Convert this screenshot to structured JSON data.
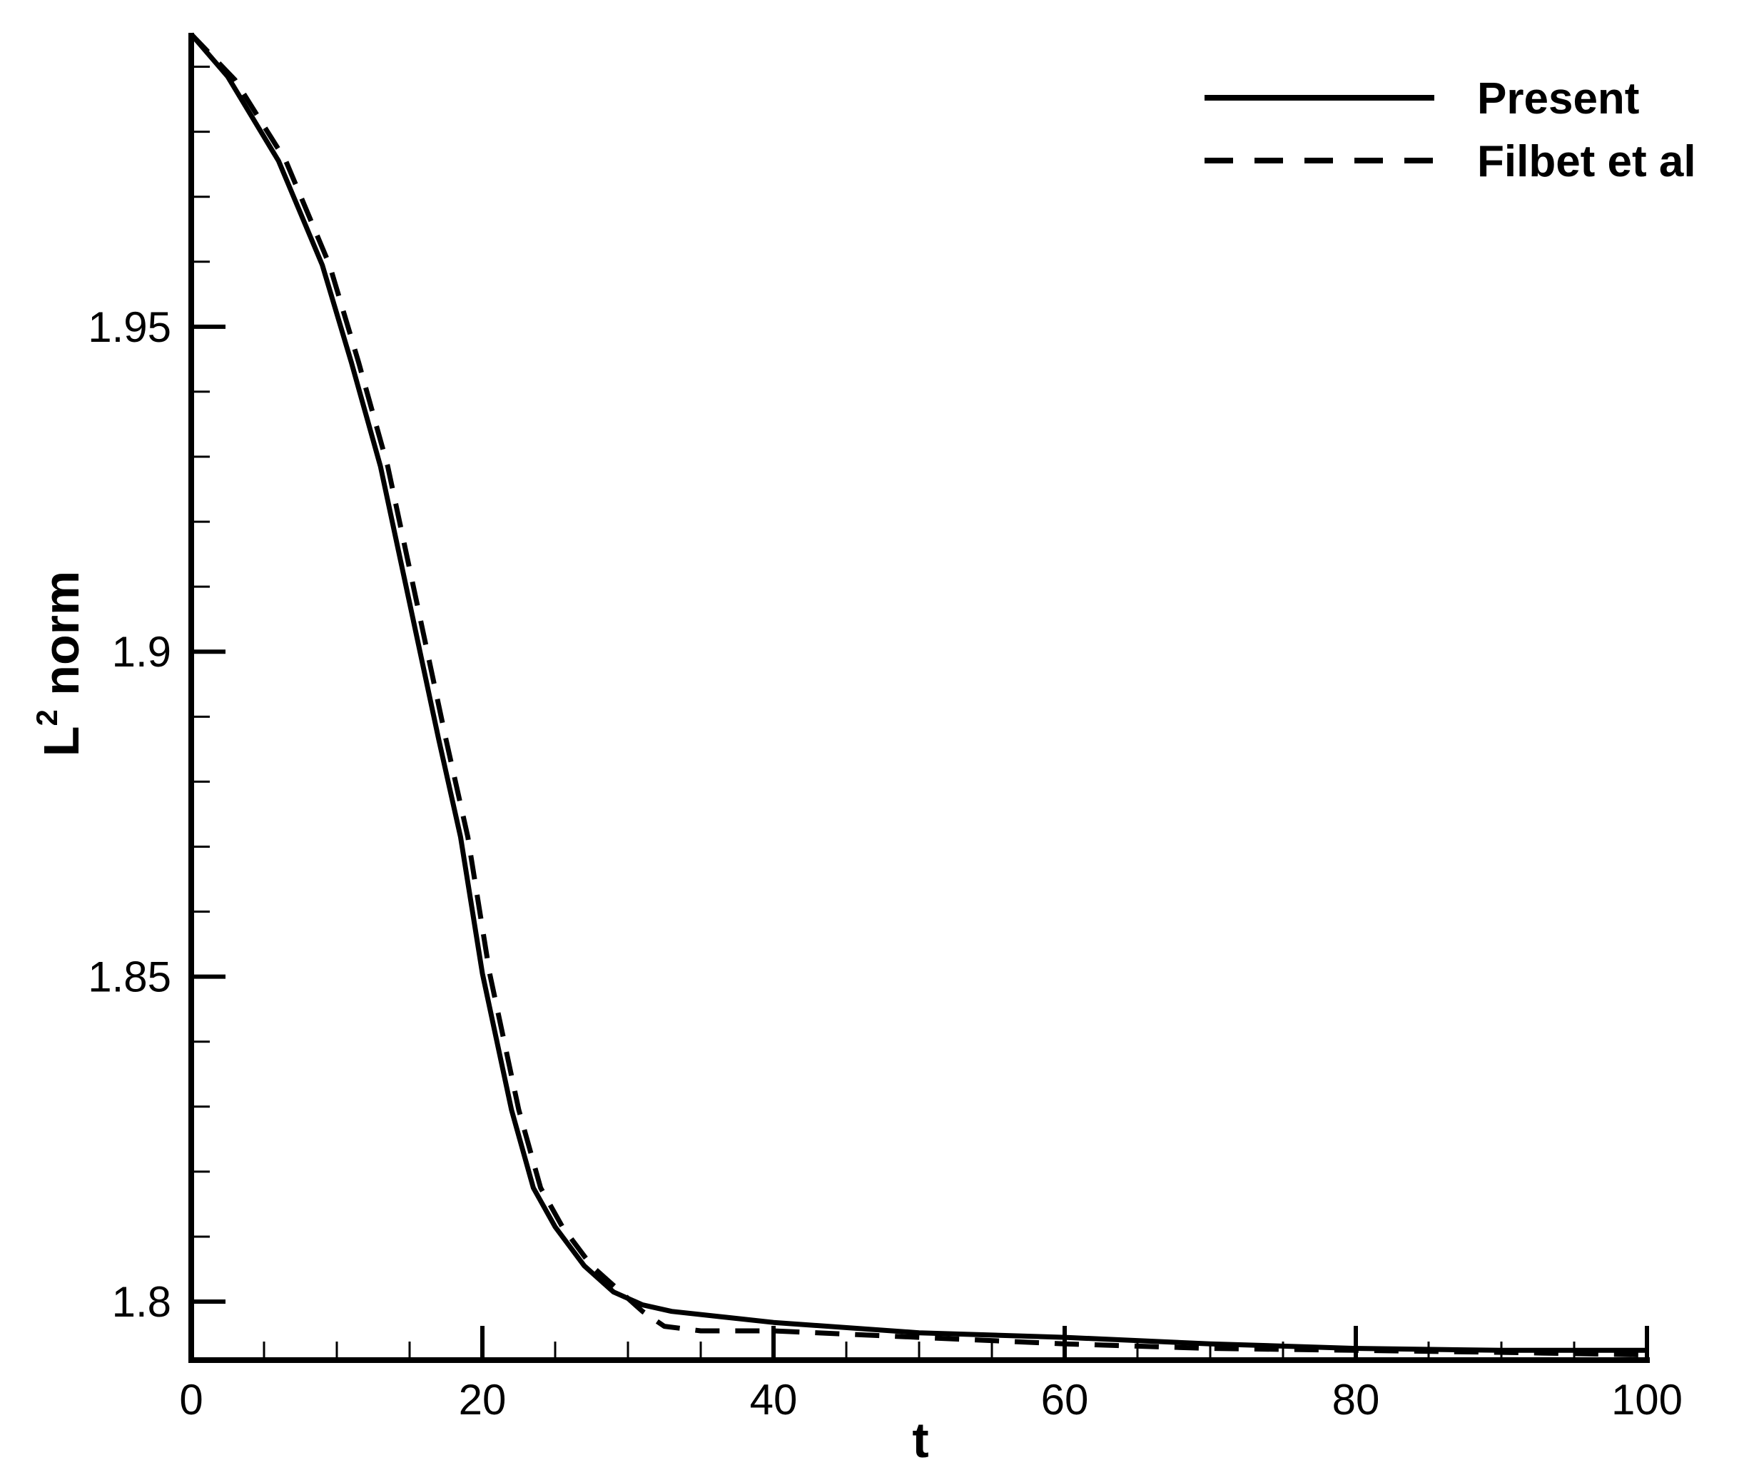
{
  "chart_data": {
    "type": "line",
    "title": "",
    "xlabel": "t",
    "ylabel": {
      "main": "L",
      "superscript": "2",
      "rest": " norm"
    },
    "xlim": [
      0,
      100
    ],
    "ylim": [
      1.791,
      1.995
    ],
    "xticks": [
      0,
      20,
      40,
      60,
      80,
      100
    ],
    "xtick_labels": [
      "0",
      "20",
      "40",
      "60",
      "80",
      "100"
    ],
    "yticks": [
      1.8,
      1.85,
      1.9,
      1.95
    ],
    "ytick_labels": [
      "1.8",
      "1.85",
      "1.9",
      "1.95"
    ],
    "x_minor_step": 5,
    "y_minor_step": 0.01,
    "grid": false,
    "legend_position": "top-right",
    "series": [
      {
        "name": "Present",
        "style": "solid",
        "color": "#000000",
        "x": [
          0,
          2.5,
          6,
          9,
          11,
          13,
          15,
          17,
          18.5,
          20,
          22,
          23.5,
          25,
          27,
          29,
          31,
          33,
          40,
          50,
          60,
          70,
          80,
          90,
          100
        ],
        "y": [
          1.995,
          1.9885,
          1.9755,
          1.9595,
          1.9445,
          1.9285,
          1.9075,
          1.8865,
          1.8715,
          1.8505,
          1.8295,
          1.8175,
          1.8115,
          1.8055,
          1.8015,
          1.7995,
          1.7985,
          1.7968,
          1.7952,
          1.7945,
          1.7935,
          1.7928,
          1.7925,
          1.7925
        ]
      },
      {
        "name": "Filbet et al",
        "style": "dashed",
        "color": "#000000",
        "x": [
          0,
          3,
          6.5,
          9.5,
          11.5,
          13.5,
          15.5,
          17.5,
          19,
          20.5,
          22.5,
          24,
          25.5,
          27.5,
          29.5,
          31,
          32.5,
          35,
          40,
          50,
          60,
          70,
          80,
          90,
          100
        ],
        "y": [
          1.995,
          1.988,
          1.9755,
          1.9595,
          1.9445,
          1.9285,
          1.9075,
          1.8865,
          1.8715,
          1.8505,
          1.8295,
          1.8175,
          1.8115,
          1.8055,
          1.8015,
          1.7985,
          1.7962,
          1.7955,
          1.7955,
          1.7945,
          1.7935,
          1.7928,
          1.7925,
          1.7922,
          1.7918
        ]
      }
    ]
  }
}
